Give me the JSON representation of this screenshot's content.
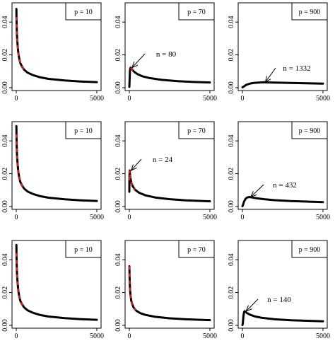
{
  "chart_data": [
    {
      "type": "line",
      "legend": "p = 10",
      "xlim": [
        0,
        5000
      ],
      "ylim": [
        0,
        0.05
      ],
      "xticks": [
        0,
        5000
      ],
      "yticks": [
        0.0,
        0.02,
        0.04
      ],
      "xtick_labels": [
        "0",
        "5000"
      ],
      "ytick_labels": [
        "0.00",
        "0.02",
        "0.04"
      ],
      "series": [
        {
          "x": [
            8,
            15,
            25,
            40,
            60,
            90,
            130,
            180,
            250,
            350,
            500,
            700,
            1000,
            1500,
            2000,
            3000,
            4000,
            5000
          ],
          "y": [
            0.048,
            0.043,
            0.038,
            0.033,
            0.029,
            0.025,
            0.021,
            0.018,
            0.015,
            0.013,
            0.0108,
            0.0092,
            0.0078,
            0.0063,
            0.0054,
            0.0044,
            0.0038,
            0.0034
          ]
        }
      ],
      "dashed_segment": {
        "x": [
          10,
          500
        ],
        "y": [
          0.046,
          0.0108
        ]
      }
    },
    {
      "type": "line",
      "legend": "p = 70",
      "xlim": [
        0,
        5000
      ],
      "ylim": [
        0,
        0.05
      ],
      "xticks": [
        0,
        5000
      ],
      "yticks": [
        0.0,
        0.02,
        0.04
      ],
      "xtick_labels": [
        "0",
        "5000"
      ],
      "ytick_labels": [
        "0.00",
        "0.02",
        "0.04"
      ],
      "series": [
        {
          "x": [
            0,
            20,
            40,
            60,
            80,
            120,
            200,
            300,
            500,
            800,
            1200,
            2000,
            3000,
            4000,
            5000
          ],
          "y": [
            0.0005,
            0.006,
            0.0105,
            0.0118,
            0.0122,
            0.0118,
            0.0108,
            0.0097,
            0.0083,
            0.007,
            0.006,
            0.0048,
            0.004,
            0.0035,
            0.0032
          ]
        }
      ],
      "dashed_segment": {
        "x": [
          80,
          300
        ],
        "y": [
          0.0122,
          0.0097
        ]
      },
      "annotation": {
        "text": "n = 80",
        "x": 80,
        "y": 0.0122
      }
    },
    {
      "type": "line",
      "legend": "p = 900",
      "xlim": [
        0,
        5000
      ],
      "ylim": [
        0,
        0.05
      ],
      "xticks": [
        0,
        5000
      ],
      "yticks": [
        0.0,
        0.02,
        0.04
      ],
      "xtick_labels": [
        "0",
        "5000"
      ],
      "ytick_labels": [
        "0.00",
        "0.02",
        "0.04"
      ],
      "series": [
        {
          "x": [
            0,
            100,
            250,
            500,
            800,
            1100,
            1332,
            1600,
            2000,
            3000,
            4000,
            5000
          ],
          "y": [
            0.0002,
            0.0008,
            0.0018,
            0.0026,
            0.003,
            0.0032,
            0.0033,
            0.0032,
            0.0031,
            0.0029,
            0.0027,
            0.0025
          ]
        }
      ],
      "annotation": {
        "text": "n = 1332",
        "x": 1332,
        "y": 0.0033
      }
    },
    {
      "type": "line",
      "legend": "p = 10",
      "xlim": [
        0,
        5000
      ],
      "ylim": [
        0,
        0.05
      ],
      "xticks": [
        0,
        5000
      ],
      "yticks": [
        0.0,
        0.02,
        0.04
      ],
      "xtick_labels": [
        "0",
        "5000"
      ],
      "ytick_labels": [
        "0.00",
        "0.02",
        "0.04"
      ],
      "series": [
        {
          "x": [
            8,
            15,
            25,
            40,
            60,
            90,
            130,
            180,
            250,
            350,
            500,
            700,
            1000,
            1500,
            2000,
            3000,
            4000,
            5000
          ],
          "y": [
            0.049,
            0.044,
            0.038,
            0.033,
            0.029,
            0.025,
            0.021,
            0.018,
            0.015,
            0.013,
            0.0108,
            0.0092,
            0.0078,
            0.0063,
            0.0054,
            0.0044,
            0.0038,
            0.0034
          ]
        }
      ],
      "dashed_segment": {
        "x": [
          10,
          500
        ],
        "y": [
          0.047,
          0.0108
        ]
      }
    },
    {
      "type": "line",
      "legend": "p = 70",
      "xlim": [
        0,
        5000
      ],
      "ylim": [
        0,
        0.05
      ],
      "xticks": [
        0,
        5000
      ],
      "yticks": [
        0.0,
        0.02,
        0.04
      ],
      "xtick_labels": [
        "0",
        "5000"
      ],
      "ytick_labels": [
        "0.00",
        "0.02",
        "0.04"
      ],
      "series": [
        {
          "x": [
            0,
            6,
            12,
            18,
            24,
            40,
            70,
            120,
            200,
            350,
            600,
            1000,
            1600,
            2500,
            3500,
            5000
          ],
          "y": [
            0.009,
            0.016,
            0.02,
            0.0215,
            0.022,
            0.0198,
            0.0172,
            0.0148,
            0.0125,
            0.0103,
            0.0084,
            0.0068,
            0.0055,
            0.0045,
            0.0038,
            0.0032
          ]
        }
      ],
      "dashed_segment": {
        "x": [
          6,
          350
        ],
        "y": [
          0.016,
          0.0103
        ]
      },
      "annotation": {
        "text": "n = 24",
        "x": 24,
        "y": 0.022
      }
    },
    {
      "type": "line",
      "legend": "p = 900",
      "xlim": [
        0,
        5000
      ],
      "ylim": [
        0,
        0.05
      ],
      "xticks": [
        0,
        5000
      ],
      "yticks": [
        0.0,
        0.02,
        0.04
      ],
      "xtick_labels": [
        "0",
        "5000"
      ],
      "ytick_labels": [
        "0.00",
        "0.02",
        "0.04"
      ],
      "series": [
        {
          "x": [
            0,
            40,
            100,
            200,
            300,
            432,
            600,
            900,
            1400,
            2000,
            3000,
            4000,
            5000
          ],
          "y": [
            0.0002,
            0.001,
            0.003,
            0.0048,
            0.0055,
            0.0058,
            0.0055,
            0.005,
            0.0044,
            0.0039,
            0.0033,
            0.003,
            0.0027
          ]
        }
      ],
      "annotation": {
        "text": "n = 432",
        "x": 432,
        "y": 0.0058
      }
    },
    {
      "type": "line",
      "legend": "p = 10",
      "xlim": [
        0,
        5000
      ],
      "ylim": [
        0,
        0.05
      ],
      "xticks": [
        0,
        5000
      ],
      "yticks": [
        0.0,
        0.02,
        0.04
      ],
      "xtick_labels": [
        "0",
        "5000"
      ],
      "ytick_labels": [
        "0.00",
        "0.02",
        "0.04"
      ],
      "series": [
        {
          "x": [
            8,
            15,
            25,
            40,
            60,
            90,
            130,
            180,
            250,
            350,
            500,
            700,
            1000,
            1500,
            2000,
            3000,
            4000,
            5000
          ],
          "y": [
            0.049,
            0.044,
            0.038,
            0.033,
            0.029,
            0.025,
            0.021,
            0.018,
            0.015,
            0.013,
            0.0108,
            0.0092,
            0.0078,
            0.0063,
            0.0054,
            0.0044,
            0.0038,
            0.0034
          ]
        }
      ],
      "dashed_segment": {
        "x": [
          10,
          500
        ],
        "y": [
          0.047,
          0.0108
        ]
      }
    },
    {
      "type": "line",
      "legend": "p = 70",
      "xlim": [
        0,
        5000
      ],
      "ylim": [
        0,
        0.05
      ],
      "xticks": [
        0,
        5000
      ],
      "yticks": [
        0.0,
        0.02,
        0.04
      ],
      "xtick_labels": [
        "0",
        "5000"
      ],
      "ytick_labels": [
        "0.00",
        "0.02",
        "0.04"
      ],
      "series": [
        {
          "x": [
            6,
            15,
            30,
            50,
            80,
            120,
            180,
            260,
            400,
            650,
            1000,
            1600,
            2500,
            3500,
            5000
          ],
          "y": [
            0.036,
            0.03,
            0.025,
            0.021,
            0.018,
            0.015,
            0.013,
            0.011,
            0.0092,
            0.0076,
            0.0064,
            0.0052,
            0.0043,
            0.0037,
            0.0032
          ]
        }
      ],
      "dashed_segment": {
        "x": [
          6,
          400
        ],
        "y": [
          0.036,
          0.0092
        ]
      }
    },
    {
      "type": "line",
      "legend": "p = 900",
      "xlim": [
        0,
        5000
      ],
      "ylim": [
        0,
        0.05
      ],
      "xticks": [
        0,
        5000
      ],
      "yticks": [
        0.0,
        0.02,
        0.04
      ],
      "xtick_labels": [
        "0",
        "5000"
      ],
      "ytick_labels": [
        "0.00",
        "0.02",
        "0.04"
      ],
      "series": [
        {
          "x": [
            0,
            20,
            50,
            80,
            110,
            140,
            200,
            300,
            500,
            800,
            1200,
            2000,
            3000,
            4000,
            5000
          ],
          "y": [
            0.0002,
            0.001,
            0.004,
            0.0068,
            0.0082,
            0.0086,
            0.0082,
            0.0074,
            0.0064,
            0.0054,
            0.0046,
            0.0037,
            0.0031,
            0.0028,
            0.0025
          ]
        }
      ],
      "annotation": {
        "text": "n = 140",
        "x": 140,
        "y": 0.0086
      }
    }
  ]
}
